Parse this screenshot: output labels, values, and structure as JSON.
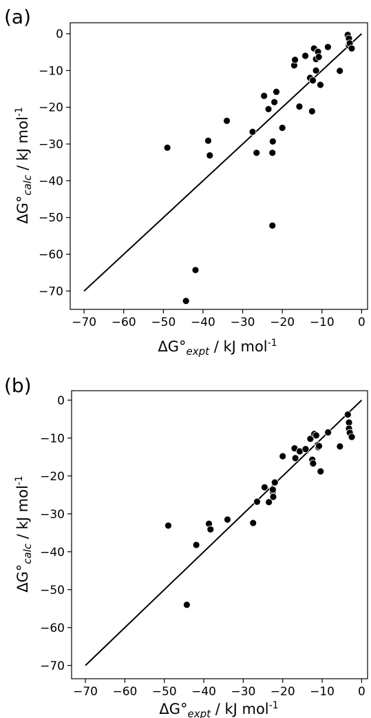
{
  "chart_data": [
    {
      "type": "scatter",
      "panel_label": "(a)",
      "xlabel": {
        "main": "ΔG°",
        "sub": "expt",
        "rest": " / kJ mol",
        "sup": "-1"
      },
      "ylabel": {
        "main": "ΔG°",
        "sub": "calc",
        "rest": " / kJ mol",
        "sup": "-1"
      },
      "xlim": [
        -73.5,
        1.5
      ],
      "ylim": [
        -75,
        3
      ],
      "xticks": [
        -70,
        -60,
        -50,
        -40,
        -30,
        -20,
        -10,
        0
      ],
      "yticks": [
        0,
        -10,
        -20,
        -30,
        -40,
        -50,
        -60,
        -70
      ],
      "grid": false,
      "legend": "none",
      "colors": {
        "points": "#000000",
        "line": "#000000"
      },
      "line": {
        "x": [
          -70,
          0
        ],
        "y": [
          -70,
          0
        ]
      },
      "x": [
        -49.0,
        -44.3,
        -41.9,
        -38.7,
        -38.3,
        -34.0,
        -27.5,
        -26.5,
        -24.6,
        -23.5,
        -22.5,
        -22.5,
        -22.4,
        -22.0,
        -21.5,
        -20.0,
        -15.7,
        -17.0,
        -16.8,
        -14.2,
        -13.0,
        -12.5,
        -12.3,
        -12.0,
        -11.5,
        -11.5,
        -11.1,
        -11.0,
        -10.8,
        -10.4,
        -8.5,
        -5.5,
        -3.5,
        -3.2,
        -3.2,
        -3.0,
        -2.5
      ],
      "y": [
        -31.0,
        -72.7,
        -64.3,
        -29.1,
        -33.1,
        -23.7,
        -26.7,
        -32.4,
        -16.9,
        -20.5,
        -52.2,
        -32.4,
        -29.3,
        -18.6,
        -15.8,
        -25.6,
        -19.8,
        -8.6,
        -7.1,
        -6.0,
        -12.0,
        -21.1,
        -12.7,
        -4.0,
        -6.9,
        -10.0,
        -5.0,
        -4.9,
        -6.3,
        -13.9,
        -3.6,
        -10.1,
        -0.3,
        -1.3,
        -3.2,
        -2.6,
        -4.0
      ]
    },
    {
      "type": "scatter",
      "panel_label": "(b)",
      "xlabel": {
        "main": "ΔG°",
        "sub": "expt",
        "rest": " / kJ mol",
        "sup": "-1"
      },
      "ylabel": {
        "main": "ΔG°",
        "sub": "calc",
        "rest": " / kJ mol",
        "sup": "-1"
      },
      "xlim": [
        -73.5,
        1.5
      ],
      "ylim": [
        -73.5,
        2.5
      ],
      "xticks": [
        -70,
        -60,
        -50,
        -40,
        -30,
        -20,
        -10,
        0
      ],
      "yticks": [
        0,
        -10,
        -20,
        -30,
        -40,
        -50,
        -60,
        -70
      ],
      "grid": false,
      "legend": "none",
      "colors": {
        "points": "#000000",
        "line": "#000000"
      },
      "line": {
        "x": [
          -70,
          0
        ],
        "y": [
          -70,
          0
        ]
      },
      "x": [
        -49.0,
        -44.3,
        -41.9,
        -38.7,
        -38.3,
        -34.0,
        -27.5,
        -26.5,
        -24.6,
        -23.5,
        -22.5,
        -22.5,
        -22.4,
        -22.0,
        -20.0,
        -17.0,
        -16.8,
        -15.7,
        -14.2,
        -13.0,
        -12.5,
        -12.3,
        -12.0,
        -11.5,
        -11.1,
        -11.0,
        -10.8,
        -10.4,
        -8.5,
        -5.5,
        -3.5,
        -3.2,
        -3.2,
        -3.0,
        -2.5
      ],
      "y": [
        -33.1,
        -54.0,
        -38.2,
        -32.6,
        -34.1,
        -31.5,
        -32.4,
        -26.8,
        -23.0,
        -26.9,
        -24.2,
        -23.6,
        -25.5,
        -21.7,
        -14.8,
        -12.7,
        -15.3,
        -13.5,
        -12.9,
        -10.2,
        -15.7,
        -16.7,
        -8.9,
        -9.3,
        -11.8,
        -12.4,
        -12.1,
        -18.8,
        -8.5,
        -12.2,
        -3.8,
        -5.9,
        -7.5,
        -8.6,
        -9.7
      ]
    }
  ]
}
